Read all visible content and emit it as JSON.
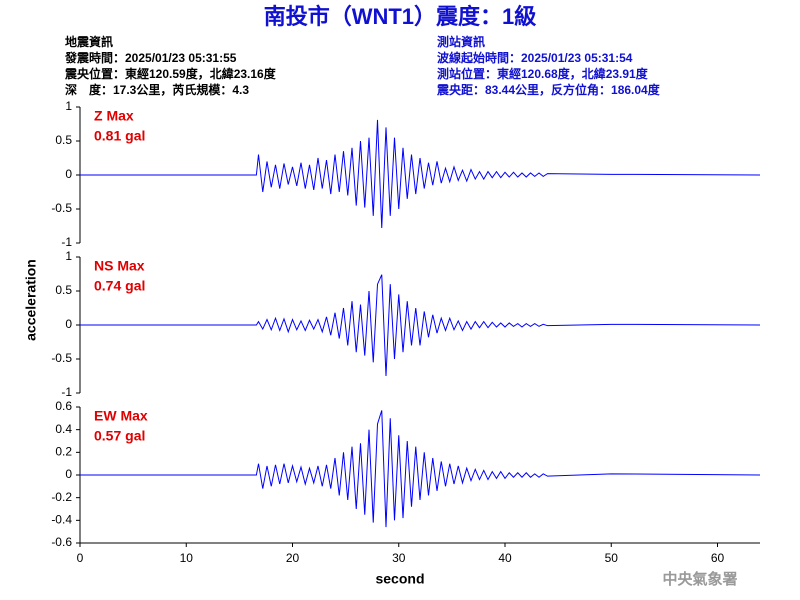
{
  "header": {
    "title": "南投市（WNT1）震度：1級",
    "left_info": [
      "地震資訊",
      "發震時間：2025/01/23 05:31:55",
      "震央位置：東經120.59度，北緯23.16度",
      "深　度：17.3公里，芮氏規模：4.3"
    ],
    "right_info": [
      "測站資訊",
      "波線起始時間：2025/01/23 05:31:54",
      "測站位置：東經120.68度，北緯23.91度",
      "震央距：83.44公里，反方位角：186.04度"
    ],
    "x_label": "second",
    "y_label": "acceleration",
    "footer": "中央氣象署"
  },
  "chart_data": [
    {
      "type": "line",
      "annotation": [
        "Z Max",
        "0.81 gal"
      ],
      "color": "#0000ff",
      "xlim": [
        0,
        64
      ],
      "ylim": [
        -1,
        1
      ],
      "yticks": [
        -1,
        -0.5,
        0,
        0.5,
        1
      ],
      "x": [
        0,
        16.6,
        16.8,
        17.2,
        17.6,
        18,
        18.4,
        18.8,
        19.2,
        19.6,
        20,
        20.4,
        20.8,
        21.2,
        21.6,
        22,
        22.4,
        22.8,
        23.2,
        23.6,
        24,
        24.4,
        24.8,
        25.2,
        25.6,
        26,
        26.4,
        26.8,
        27.2,
        27.6,
        28,
        28.4,
        28.8,
        29.2,
        29.6,
        30,
        30.4,
        30.8,
        31.2,
        31.6,
        32,
        32.4,
        32.8,
        33.2,
        33.6,
        34,
        34.4,
        34.8,
        35.2,
        35.6,
        36,
        36.4,
        36.8,
        37.2,
        37.6,
        38,
        38.4,
        38.8,
        39.2,
        39.6,
        40,
        40.4,
        40.8,
        41.2,
        41.6,
        42,
        42.4,
        42.8,
        43.2,
        43.6,
        44,
        50,
        64
      ],
      "values": [
        0,
        0,
        0.3,
        -0.25,
        0.2,
        -0.18,
        0.15,
        -0.2,
        0.17,
        -0.14,
        0.12,
        -0.16,
        0.18,
        -0.2,
        0.15,
        -0.22,
        0.25,
        -0.2,
        0.22,
        -0.28,
        0.3,
        -0.25,
        0.35,
        -0.3,
        0.4,
        -0.45,
        0.5,
        -0.48,
        0.55,
        -0.6,
        0.81,
        -0.78,
        0.7,
        -0.6,
        0.55,
        -0.5,
        0.4,
        -0.35,
        0.3,
        -0.28,
        0.25,
        -0.2,
        0.18,
        -0.15,
        0.2,
        -0.12,
        0.1,
        -0.1,
        0.12,
        -0.08,
        0.07,
        -0.09,
        0.08,
        -0.06,
        0.05,
        -0.06,
        0.05,
        -0.04,
        0.05,
        -0.04,
        0.04,
        -0.03,
        0.04,
        -0.03,
        0.03,
        -0.03,
        0.03,
        -0.02,
        0.03,
        -0.02,
        0.02,
        0.01,
        0
      ]
    },
    {
      "type": "line",
      "annotation": [
        "NS Max",
        "0.74 gal"
      ],
      "color": "#0000ff",
      "xlim": [
        0,
        64
      ],
      "ylim": [
        -1,
        1
      ],
      "yticks": [
        -1,
        -0.5,
        0,
        0.5,
        1
      ],
      "x": [
        0,
        16.6,
        16.8,
        17.2,
        17.6,
        18,
        18.4,
        18.8,
        19.2,
        19.6,
        20,
        20.4,
        20.8,
        21.2,
        21.6,
        22,
        22.4,
        22.8,
        23.2,
        23.6,
        24,
        24.4,
        24.8,
        25.2,
        25.6,
        26,
        26.4,
        26.8,
        27.2,
        27.6,
        28,
        28.4,
        28.8,
        29.2,
        29.6,
        30,
        30.4,
        30.8,
        31.2,
        31.6,
        32,
        32.4,
        32.8,
        33.2,
        33.6,
        34,
        34.4,
        34.8,
        35.2,
        35.6,
        36,
        36.4,
        36.8,
        37.2,
        37.6,
        38,
        38.4,
        38.8,
        39.2,
        39.6,
        40,
        40.4,
        40.8,
        41.2,
        41.6,
        42,
        42.4,
        42.8,
        43.2,
        43.6,
        44,
        50,
        64
      ],
      "values": [
        0,
        0,
        0.05,
        -0.06,
        0.08,
        -0.07,
        0.1,
        -0.08,
        0.09,
        -0.1,
        0.08,
        -0.07,
        0.06,
        -0.08,
        0.07,
        -0.06,
        0.08,
        -0.1,
        0.12,
        -0.15,
        0.18,
        -0.2,
        0.25,
        -0.3,
        0.35,
        -0.4,
        0.3,
        -0.45,
        0.5,
        -0.55,
        0.6,
        0.74,
        -0.75,
        0.6,
        -0.5,
        0.45,
        -0.4,
        0.35,
        -0.3,
        0.25,
        -0.3,
        0.2,
        -0.18,
        0.15,
        -0.12,
        0.1,
        -0.08,
        0.1,
        -0.07,
        0.06,
        -0.08,
        0.05,
        -0.06,
        0.05,
        -0.04,
        0.05,
        -0.04,
        0.04,
        -0.03,
        0.03,
        -0.03,
        0.03,
        -0.02,
        0.02,
        -0.03,
        0.02,
        -0.02,
        0.02,
        -0.02,
        0.01,
        -0.01,
        0.01,
        0
      ]
    },
    {
      "type": "line",
      "annotation": [
        "EW Max",
        "0.57 gal"
      ],
      "color": "#0000ff",
      "xlim": [
        0,
        64
      ],
      "ylim": [
        -0.6,
        0.6
      ],
      "yticks": [
        -0.6,
        -0.4,
        -0.2,
        0,
        0.2,
        0.4,
        0.6
      ],
      "xticks": [
        0,
        10,
        20,
        30,
        40,
        50,
        60
      ],
      "x": [
        0,
        16.6,
        16.8,
        17.2,
        17.6,
        18,
        18.4,
        18.8,
        19.2,
        19.6,
        20,
        20.4,
        20.8,
        21.2,
        21.6,
        22,
        22.4,
        22.8,
        23.2,
        23.6,
        24,
        24.4,
        24.8,
        25.2,
        25.6,
        26,
        26.4,
        26.8,
        27.2,
        27.6,
        28,
        28.4,
        28.8,
        29.2,
        29.6,
        30,
        30.4,
        30.8,
        31.2,
        31.6,
        32,
        32.4,
        32.8,
        33.2,
        33.6,
        34,
        34.4,
        34.8,
        35.2,
        35.6,
        36,
        36.4,
        36.8,
        37.2,
        37.6,
        38,
        38.4,
        38.8,
        39.2,
        39.6,
        40,
        40.4,
        40.8,
        41.2,
        41.6,
        42,
        42.4,
        42.8,
        43.2,
        43.6,
        44,
        50,
        64
      ],
      "values": [
        0,
        0,
        0.1,
        -0.12,
        0.08,
        -0.1,
        0.09,
        -0.08,
        0.1,
        -0.07,
        0.08,
        -0.06,
        0.07,
        -0.08,
        0.06,
        -0.07,
        0.08,
        -0.1,
        0.09,
        -0.12,
        0.15,
        -0.18,
        0.2,
        -0.22,
        0.25,
        -0.3,
        0.28,
        -0.35,
        0.4,
        -0.42,
        0.45,
        0.57,
        -0.46,
        0.5,
        -0.4,
        0.35,
        -0.38,
        0.3,
        -0.28,
        0.25,
        -0.22,
        0.2,
        -0.18,
        0.15,
        -0.14,
        0.12,
        -0.1,
        0.1,
        -0.08,
        0.08,
        -0.07,
        0.06,
        -0.05,
        0.05,
        -0.04,
        0.04,
        -0.04,
        0.03,
        -0.03,
        0.03,
        -0.03,
        0.02,
        -0.02,
        0.02,
        -0.02,
        0.02,
        -0.02,
        0.01,
        -0.02,
        0.01,
        -0.01,
        0.01,
        0
      ]
    }
  ]
}
